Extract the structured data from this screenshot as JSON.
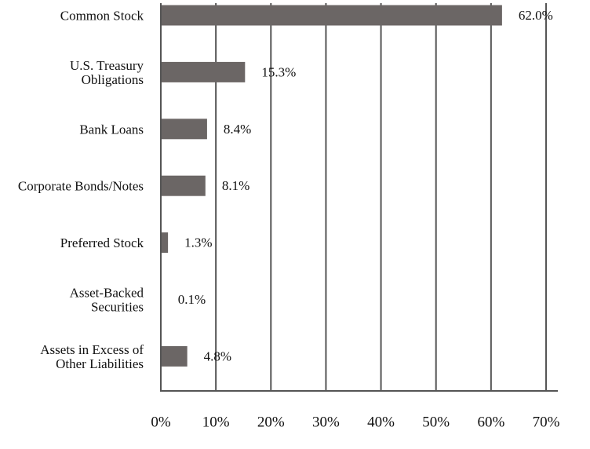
{
  "chart_data": {
    "type": "bar",
    "orientation": "horizontal",
    "categories": [
      [
        "Common Stock"
      ],
      [
        "U.S. Treasury",
        "Obligations"
      ],
      [
        "Bank Loans"
      ],
      [
        "Corporate Bonds/Notes"
      ],
      [
        "Preferred Stock"
      ],
      [
        "Asset-Backed",
        "Securities"
      ],
      [
        "Assets in Excess of",
        "Other Liabilities"
      ]
    ],
    "values": [
      62.0,
      15.3,
      8.4,
      8.1,
      1.3,
      0.1,
      4.8
    ],
    "value_labels": [
      "62.0%",
      "15.3%",
      "8.4%",
      "8.1%",
      "1.3%",
      "0.1%",
      "4.8%"
    ],
    "x_ticks": [
      "0%",
      "10%",
      "20%",
      "30%",
      "40%",
      "50%",
      "60%",
      "70%"
    ],
    "xlim": [
      0,
      70
    ],
    "grid": "vertical",
    "bar_color": "#6b6665",
    "grid_color": "#555555",
    "title": "",
    "xlabel": "",
    "ylabel": ""
  }
}
